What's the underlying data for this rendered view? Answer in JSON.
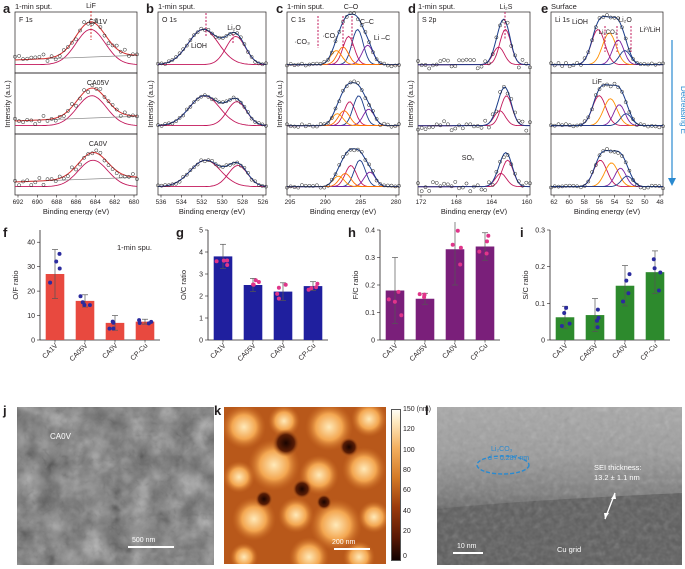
{
  "xps": {
    "a": {
      "letter": "a",
      "title": "1-min sput.",
      "element": "F 1s",
      "peak": "LiF",
      "samples": [
        "CA1V",
        "CA05V",
        "CA0V"
      ],
      "xlabel": "Binding energy (eV)",
      "ylabel": "Intensity (a.u.)",
      "ticks": [
        "692",
        "690",
        "688",
        "686",
        "684",
        "682",
        "680"
      ]
    },
    "b": {
      "letter": "b",
      "title": "1-min sput.",
      "element": "O 1s",
      "peaks": [
        "LiOH",
        "Li₂O"
      ],
      "xlabel": "Binding energy (eV)",
      "ylabel": "Intensity (a.u.)",
      "ticks": [
        "536",
        "534",
        "532",
        "530",
        "528",
        "526"
      ]
    },
    "c": {
      "letter": "c",
      "title": "1-min sput.",
      "element": "C 1s",
      "peaks": [
        "C–O",
        "·CO₃",
        "·CO₂",
        "C–C",
        "Li –C"
      ],
      "xlabel": "Binding energy (eV)",
      "ylabel": "Intensity (a.u.)",
      "ticks": [
        "295",
        "290",
        "285",
        "280"
      ]
    },
    "d": {
      "letter": "d",
      "title": "1-min sput.",
      "element": "S 2p",
      "peaks": [
        "Li₂S",
        "SOₓ"
      ],
      "xlabel": "Binding energy (eV)",
      "ylabel": "Intensity (a.u.)",
      "ticks": [
        "172",
        "168",
        "164",
        "160"
      ]
    },
    "e": {
      "letter": "e",
      "title": "Surface",
      "element": "Li 1s",
      "peaks": [
        "LiOH",
        "Li₂O",
        "Li₂CO₃",
        "Li⁰/LiH",
        "LiF"
      ],
      "side_label": "Decreasing E",
      "xlabel": "Binding energy (eV)",
      "ylabel": "",
      "ticks": [
        "62",
        "60",
        "58",
        "56",
        "54",
        "52",
        "50",
        "48"
      ]
    }
  },
  "bars": {
    "f": {
      "letter": "f",
      "ylabel": "O/F ratio",
      "note": "1-min spu.",
      "color": "#e8493f",
      "chart_data": {
        "type": "bar",
        "categories": [
          "CA1V",
          "CA05V",
          "CA0V",
          "CP-Cu"
        ],
        "values": [
          27,
          16,
          7,
          7.5
        ],
        "err": [
          10,
          2.5,
          3,
          1
        ],
        "ylim": [
          0,
          45
        ],
        "yticks": [
          0,
          10,
          20,
          30,
          40
        ]
      }
    },
    "g": {
      "letter": "g",
      "ylabel": "O/C ratio",
      "color": "#1f1f9e",
      "chart_data": {
        "type": "bar",
        "categories": [
          "CA1V",
          "CA05V",
          "CA0V",
          "CP-Cu"
        ],
        "values": [
          3.8,
          2.5,
          2.2,
          2.45
        ],
        "err": [
          0.55,
          0.3,
          0.4,
          0.2
        ],
        "ylim": [
          0,
          5
        ],
        "yticks": [
          0,
          1,
          2,
          3,
          4,
          5
        ]
      }
    },
    "h": {
      "letter": "h",
      "ylabel": "F/C ratio",
      "color": "#7a1f7a",
      "chart_data": {
        "type": "bar",
        "categories": [
          "CA1V",
          "CA05V",
          "CA0V",
          "CP-Cu"
        ],
        "values": [
          0.18,
          0.15,
          0.33,
          0.34
        ],
        "err": [
          0.12,
          0.02,
          0.13,
          0.05
        ],
        "ylim": [
          0,
          0.4
        ],
        "yticks": [
          "0",
          "0.1",
          "0.2",
          "0.3",
          "0.4"
        ]
      }
    },
    "i": {
      "letter": "i",
      "ylabel": "S/C ratio",
      "color": "#2d8a2d",
      "chart_data": {
        "type": "bar",
        "categories": [
          "CA1V",
          "CA05V",
          "CA0V",
          "CP-Cu"
        ],
        "values": [
          0.062,
          0.068,
          0.148,
          0.185
        ],
        "err": [
          0.03,
          0.045,
          0.055,
          0.058
        ],
        "ylim": [
          0,
          0.3
        ],
        "yticks": [
          "0",
          "0.1",
          "0.2",
          "0.3"
        ]
      }
    }
  },
  "images": {
    "j": {
      "letter": "j",
      "label": "CA0V",
      "scalebar": "500 nm"
    },
    "k": {
      "letter": "k",
      "scalebar": "200 nm",
      "colorbar_unit": "150 (nm)",
      "colorbar_ticks": [
        "120",
        "100",
        "80",
        "60",
        "40",
        "20",
        "0"
      ]
    },
    "l": {
      "letter": "l",
      "compound": "Li₂CO₃",
      "dspacing": "d = 0.287 nm",
      "thickness_title": "SEI thickness:",
      "thickness_value": "13.2 ± 1.1 nm",
      "substrate": "Cu grid",
      "scalebar": "10 nm"
    }
  }
}
